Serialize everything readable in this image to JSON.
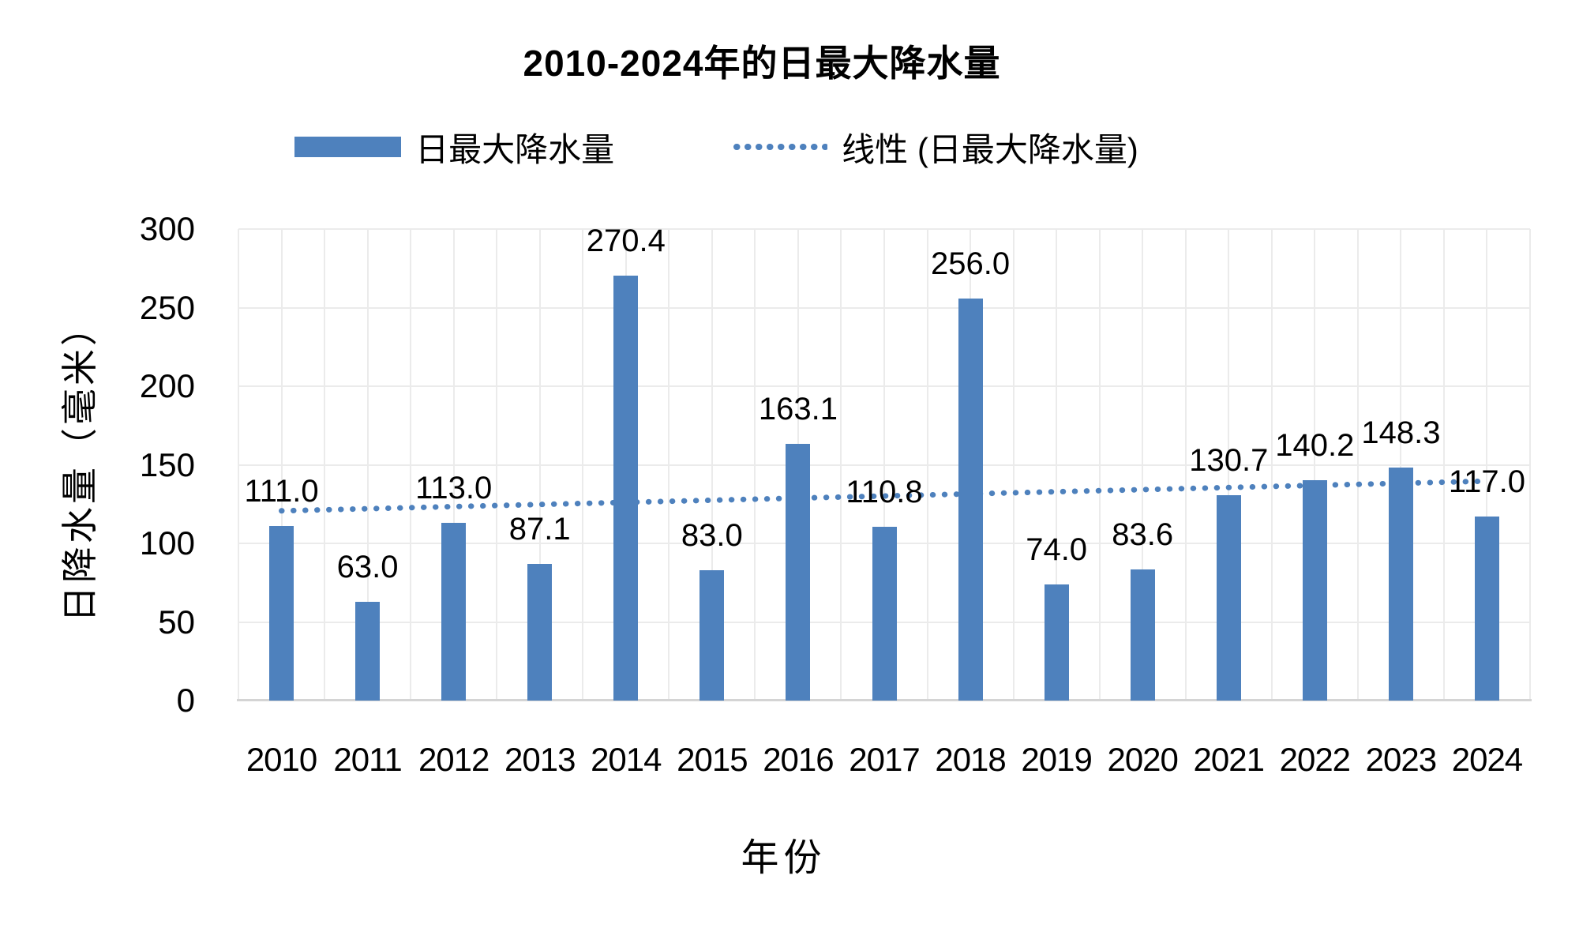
{
  "legend": {
    "items": [
      {
        "label": "日最大降水量",
        "marker": "bar-swatch"
      },
      {
        "label": "线性 (日最大降水量)",
        "marker": "dotted-line"
      }
    ]
  },
  "chart_data": {
    "type": "bar",
    "title": "2010-2024年的日最大降水量",
    "categories": [
      "2010",
      "2011",
      "2012",
      "2013",
      "2014",
      "2015",
      "2016",
      "2017",
      "2018",
      "2019",
      "2020",
      "2021",
      "2022",
      "2023",
      "2024"
    ],
    "series": [
      {
        "name": "日最大降水量",
        "values": [
          111.0,
          63.0,
          113.0,
          87.1,
          270.4,
          83.0,
          163.1,
          110.8,
          256.0,
          74.0,
          83.6,
          130.7,
          140.2,
          148.3,
          117.0
        ],
        "labels": [
          "111.0",
          "63.0",
          "113.0",
          "87.1",
          "270.4",
          "83.0",
          "163.1",
          "110.8",
          "256.0",
          "74.0",
          "83.6",
          "130.7",
          "140.2",
          "148.3",
          "117.0"
        ]
      }
    ],
    "trendline": {
      "name": "线性 (日最大降水量)",
      "style": "dotted",
      "start_value": 120.7,
      "end_value": 139.6
    },
    "xlabel": "年份",
    "ylabel": "日降水量（毫米）",
    "ylim": [
      0,
      300
    ],
    "ytick_interval": 50,
    "yticks": [
      "300",
      "250",
      "200",
      "150",
      "100",
      "50",
      "0"
    ],
    "grid": {
      "horizontal": "major",
      "vertical": "major-and-minor"
    },
    "legend_position": "top",
    "colors": {
      "bar": "#4E81BD",
      "trendline": "#4E81BD",
      "gridline": "#EBEBEB",
      "axis_line": "#D4D4D4",
      "text": "#000000"
    }
  }
}
